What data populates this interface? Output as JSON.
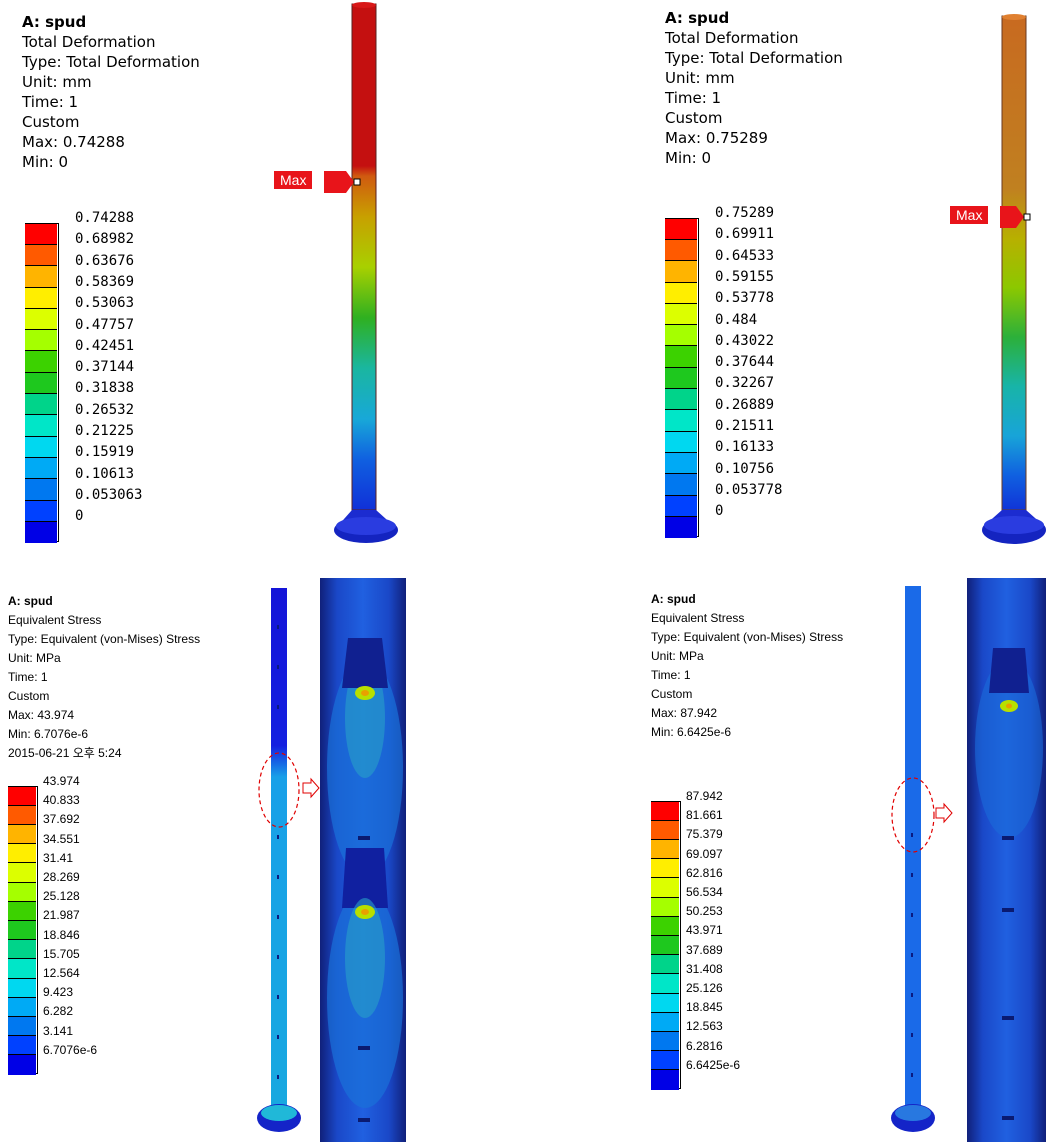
{
  "panels": {
    "deformation_left": {
      "title": "A: spud",
      "lines": [
        "Total Deformation",
        "Type: Total Deformation",
        "Unit: mm",
        "Time: 1",
        "Custom",
        "Max: 0.74288",
        "Min: 0"
      ],
      "legend": [
        "0.74288",
        "0.68982",
        "0.63676",
        "0.58369",
        "0.53063",
        "0.47757",
        "0.42451",
        "0.37144",
        "0.31838",
        "0.26532",
        "0.21225",
        "0.15919",
        "0.10613",
        "0.053063",
        "0"
      ],
      "max_tag": "Max"
    },
    "deformation_right": {
      "title": "A: spud",
      "lines": [
        "Total Deformation",
        "Type: Total Deformation",
        "Unit: mm",
        "Time: 1",
        "Custom",
        "Max: 0.75289",
        "Min: 0"
      ],
      "legend": [
        "0.75289",
        "0.69911",
        "0.64533",
        "0.59155",
        "0.53778",
        "0.484",
        "0.43022",
        "0.37644",
        "0.32267",
        "0.26889",
        "0.21511",
        "0.16133",
        "0.10756",
        "0.053778",
        "0"
      ],
      "max_tag": "Max"
    },
    "stress_left": {
      "title": "A: spud",
      "lines": [
        "Equivalent Stress",
        "Type: Equivalent (von-Mises) Stress",
        "Unit: MPa",
        "Time: 1",
        "Custom",
        "Max: 43.974",
        "Min: 6.7076e-6",
        "2015-06-21 오후 5:24"
      ],
      "legend": [
        "43.974",
        "40.833",
        "37.692",
        "34.551",
        "31.41",
        "28.269",
        "25.128",
        "21.987",
        "18.846",
        "15.705",
        "12.564",
        "9.423",
        "6.282",
        "3.141",
        "6.7076e-6"
      ]
    },
    "stress_right": {
      "title": "A: spud",
      "lines": [
        "Equivalent Stress",
        "Type: Equivalent (von-Mises) Stress",
        "Unit: MPa",
        "Time: 1",
        "Custom",
        "Max: 87.942",
        "Min: 6.6425e-6"
      ],
      "legend": [
        "87.942",
        "81.661",
        "75.379",
        "69.097",
        "62.816",
        "56.534",
        "50.253",
        "43.971",
        "37.689",
        "31.408",
        "25.126",
        "18.845",
        "12.563",
        "6.2816",
        "6.6425e-6"
      ]
    }
  },
  "colors": {
    "scale": [
      "#ff0000",
      "#ff5a00",
      "#ffb400",
      "#ffee00",
      "#dcff00",
      "#a5ff00",
      "#3cd200",
      "#1ec81e",
      "#00d48a",
      "#00e6c8",
      "#00d8f0",
      "#00aaf5",
      "#0078f0",
      "#0041ff",
      "#0000e6"
    ]
  }
}
